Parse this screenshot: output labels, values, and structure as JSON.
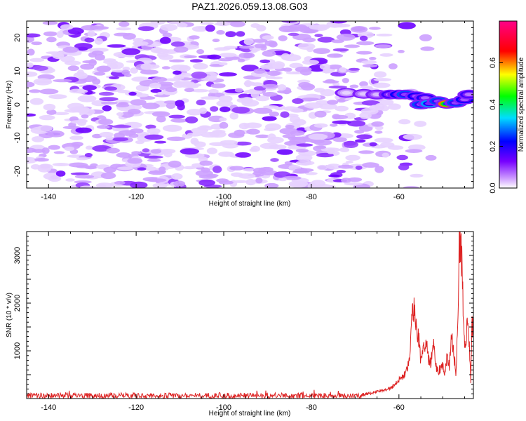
{
  "figure": {
    "title": "PAZ1.2026.059.13.08.G03"
  },
  "chart_data": [
    {
      "type": "heatmap",
      "title": "PAZ1.2026.059.13.08.G03",
      "xlabel": "Height of straight line (km)",
      "ylabel": "Frequency (Hz)",
      "xlim": [
        -145,
        -43
      ],
      "ylim": [
        -25,
        25
      ],
      "xticks": [
        -140,
        -120,
        -100,
        -80,
        -60
      ],
      "yticks": [
        -20,
        -10,
        0,
        10,
        20
      ],
      "colorbar": {
        "label": "Normalized spectral amplitude",
        "range": [
          0,
          0.8
        ],
        "ticks": [
          0.0,
          0.2,
          0.4,
          0.6
        ],
        "tick_labels": [
          "0.0",
          "0.2",
          "0.4",
          "0.6"
        ]
      },
      "background_speckle": {
        "x_range": [
          -145,
          -63
        ],
        "y_range": [
          -25,
          25
        ],
        "typical_amplitude": 0.08,
        "peak_amplitude": 0.15
      },
      "signal_band": [
        {
          "x": -72,
          "y": 3.5,
          "amplitude": 0.1
        },
        {
          "x": -68,
          "y": 3.2,
          "amplitude": 0.12
        },
        {
          "x": -65,
          "y": 3.0,
          "amplitude": 0.15
        },
        {
          "x": -62,
          "y": 3.0,
          "amplitude": 0.25
        },
        {
          "x": -60,
          "y": 3.0,
          "amplitude": 0.3
        },
        {
          "x": -58.5,
          "y": 3.0,
          "amplitude": 0.35
        },
        {
          "x": -56,
          "y": 2.5,
          "amplitude": 0.3
        },
        {
          "x": -54,
          "y": 2.0,
          "amplitude": 0.28
        },
        {
          "x": -55,
          "y": 0.0,
          "amplitude": 0.35
        },
        {
          "x": -53,
          "y": 0.3,
          "amplitude": 0.4
        },
        {
          "x": -51,
          "y": 1.0,
          "amplitude": 0.35
        },
        {
          "x": -49,
          "y": 0.2,
          "amplitude": 0.78
        },
        {
          "x": -47,
          "y": 0.5,
          "amplitude": 0.35
        },
        {
          "x": -45,
          "y": 1.5,
          "amplitude": 0.3
        },
        {
          "x": -44,
          "y": 3.0,
          "amplitude": 0.25
        }
      ]
    },
    {
      "type": "line",
      "xlabel": "Height of straight line (km)",
      "ylabel": "SNR (10 * v/v)",
      "xlim": [
        -145,
        -43
      ],
      "ylim": [
        0,
        3500
      ],
      "xticks": [
        -140,
        -120,
        -100,
        -80,
        -60
      ],
      "yticks": [
        1000,
        2000,
        3000
      ],
      "series": [
        {
          "name": "SNR",
          "color": "#dd2222",
          "baseline": {
            "x_range": [
              -145,
              -68
            ],
            "level": 60,
            "noise": 60
          },
          "x": [
            -68,
            -66,
            -64,
            -62,
            -61,
            -60,
            -59,
            -58,
            -57.5,
            -57,
            -56.7,
            -56.3,
            -56,
            -55.5,
            -55,
            -54.5,
            -54,
            -53.5,
            -53,
            -52.5,
            -52,
            -51.5,
            -51,
            -50.5,
            -50,
            -49.5,
            -49,
            -48.5,
            -48,
            -47.5,
            -47,
            -46.5,
            -46.2,
            -45.8,
            -45.5,
            -45.2,
            -45,
            -44.5,
            -44,
            -43.6,
            -43.3,
            -43
          ],
          "y": [
            80,
            120,
            160,
            220,
            280,
            400,
            450,
            650,
            900,
            1650,
            1920,
            1650,
            1450,
            1300,
            800,
            1000,
            1200,
            1050,
            650,
            900,
            1100,
            700,
            550,
            650,
            720,
            550,
            950,
            700,
            1300,
            1000,
            500,
            1650,
            3450,
            3100,
            2600,
            1500,
            1000,
            1500,
            1200,
            350,
            1600,
            1300
          ]
        }
      ]
    }
  ]
}
